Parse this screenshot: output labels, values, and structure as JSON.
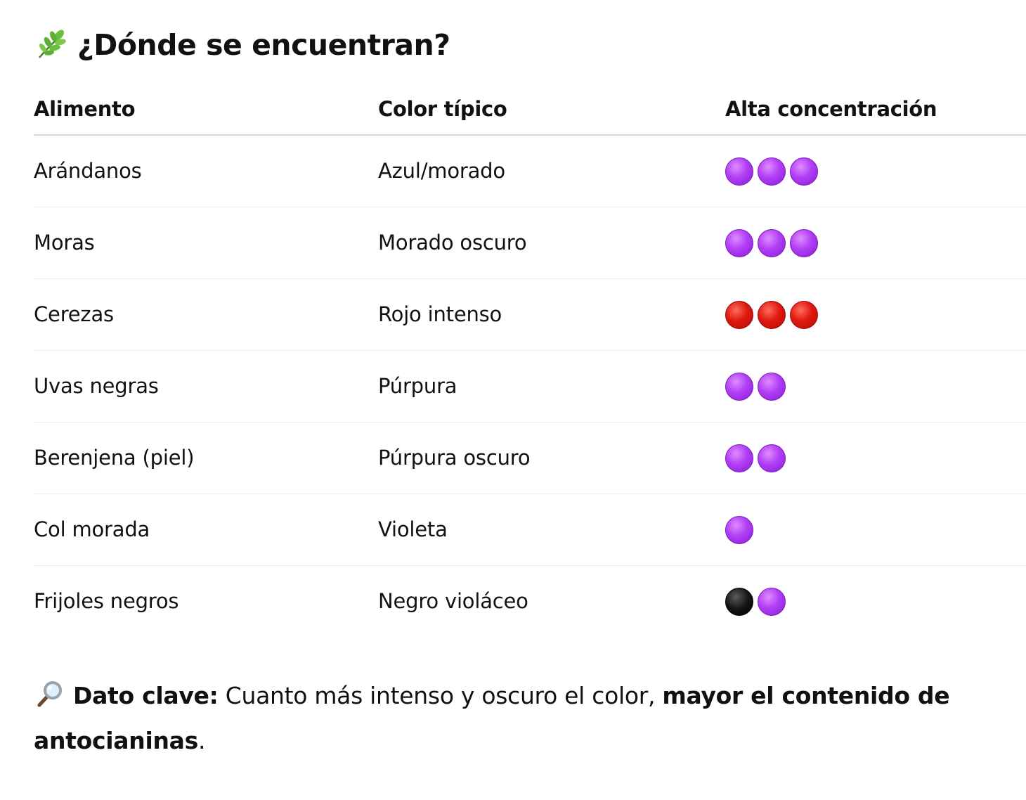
{
  "heading": {
    "icon": "herb-icon",
    "title": "¿Dónde se encuentran?"
  },
  "table": {
    "headers": [
      "Alimento",
      "Color típico",
      "Alta concentración"
    ],
    "rows": [
      {
        "food": "Arándanos",
        "color": "Azul/morado",
        "dots": [
          "purple",
          "purple",
          "purple"
        ]
      },
      {
        "food": "Moras",
        "color": "Morado oscuro",
        "dots": [
          "purple",
          "purple",
          "purple"
        ]
      },
      {
        "food": "Cerezas",
        "color": "Rojo intenso",
        "dots": [
          "red",
          "red",
          "red"
        ]
      },
      {
        "food": "Uvas negras",
        "color": "Púrpura",
        "dots": [
          "purple",
          "purple"
        ]
      },
      {
        "food": "Berenjena (piel)",
        "color": "Púrpura oscuro",
        "dots": [
          "purple",
          "purple"
        ]
      },
      {
        "food": "Col morada",
        "color": "Violeta",
        "dots": [
          "purple"
        ]
      },
      {
        "food": "Frijoles negros",
        "color": "Negro violáceo",
        "dots": [
          "black",
          "purple"
        ]
      }
    ]
  },
  "note": {
    "icon": "magnifier-icon",
    "label": "Dato clave:",
    "text": " Cuanto más intenso y oscuro el color, ",
    "emphasis": "mayor el contenido de antocianinas",
    "end": "."
  },
  "colors": {
    "purple": "#b13ef5",
    "red": "#e0190f",
    "black": "#141414",
    "divider": "#d9d9d9"
  }
}
